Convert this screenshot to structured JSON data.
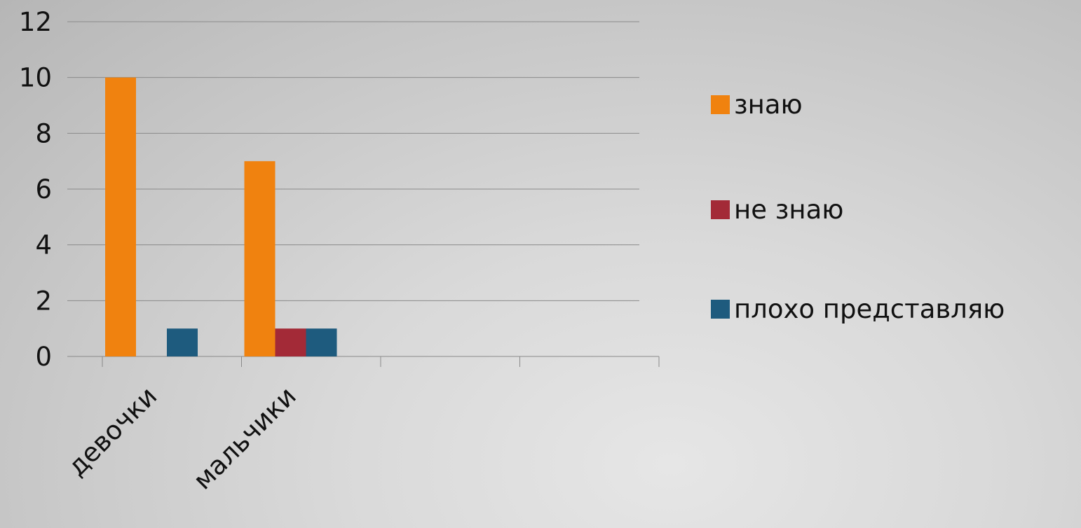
{
  "chart_data": {
    "type": "bar",
    "categories": [
      "девочки",
      "мальчики",
      "",
      ""
    ],
    "series": [
      {
        "name": "знаю",
        "color": "#f0820f",
        "values": [
          10,
          7,
          null,
          null
        ]
      },
      {
        "name": "не знаю",
        "color": "#a32a37",
        "values": [
          0,
          1,
          null,
          null
        ]
      },
      {
        "name": "плохо представляю",
        "color": "#1e5b7e",
        "values": [
          1,
          1,
          null,
          null
        ]
      }
    ],
    "y_ticks": [
      "0",
      "2",
      "4",
      "6",
      "8",
      "10",
      "12"
    ],
    "ylim": [
      0,
      12
    ],
    "grid": true,
    "legend_position": "right"
  }
}
